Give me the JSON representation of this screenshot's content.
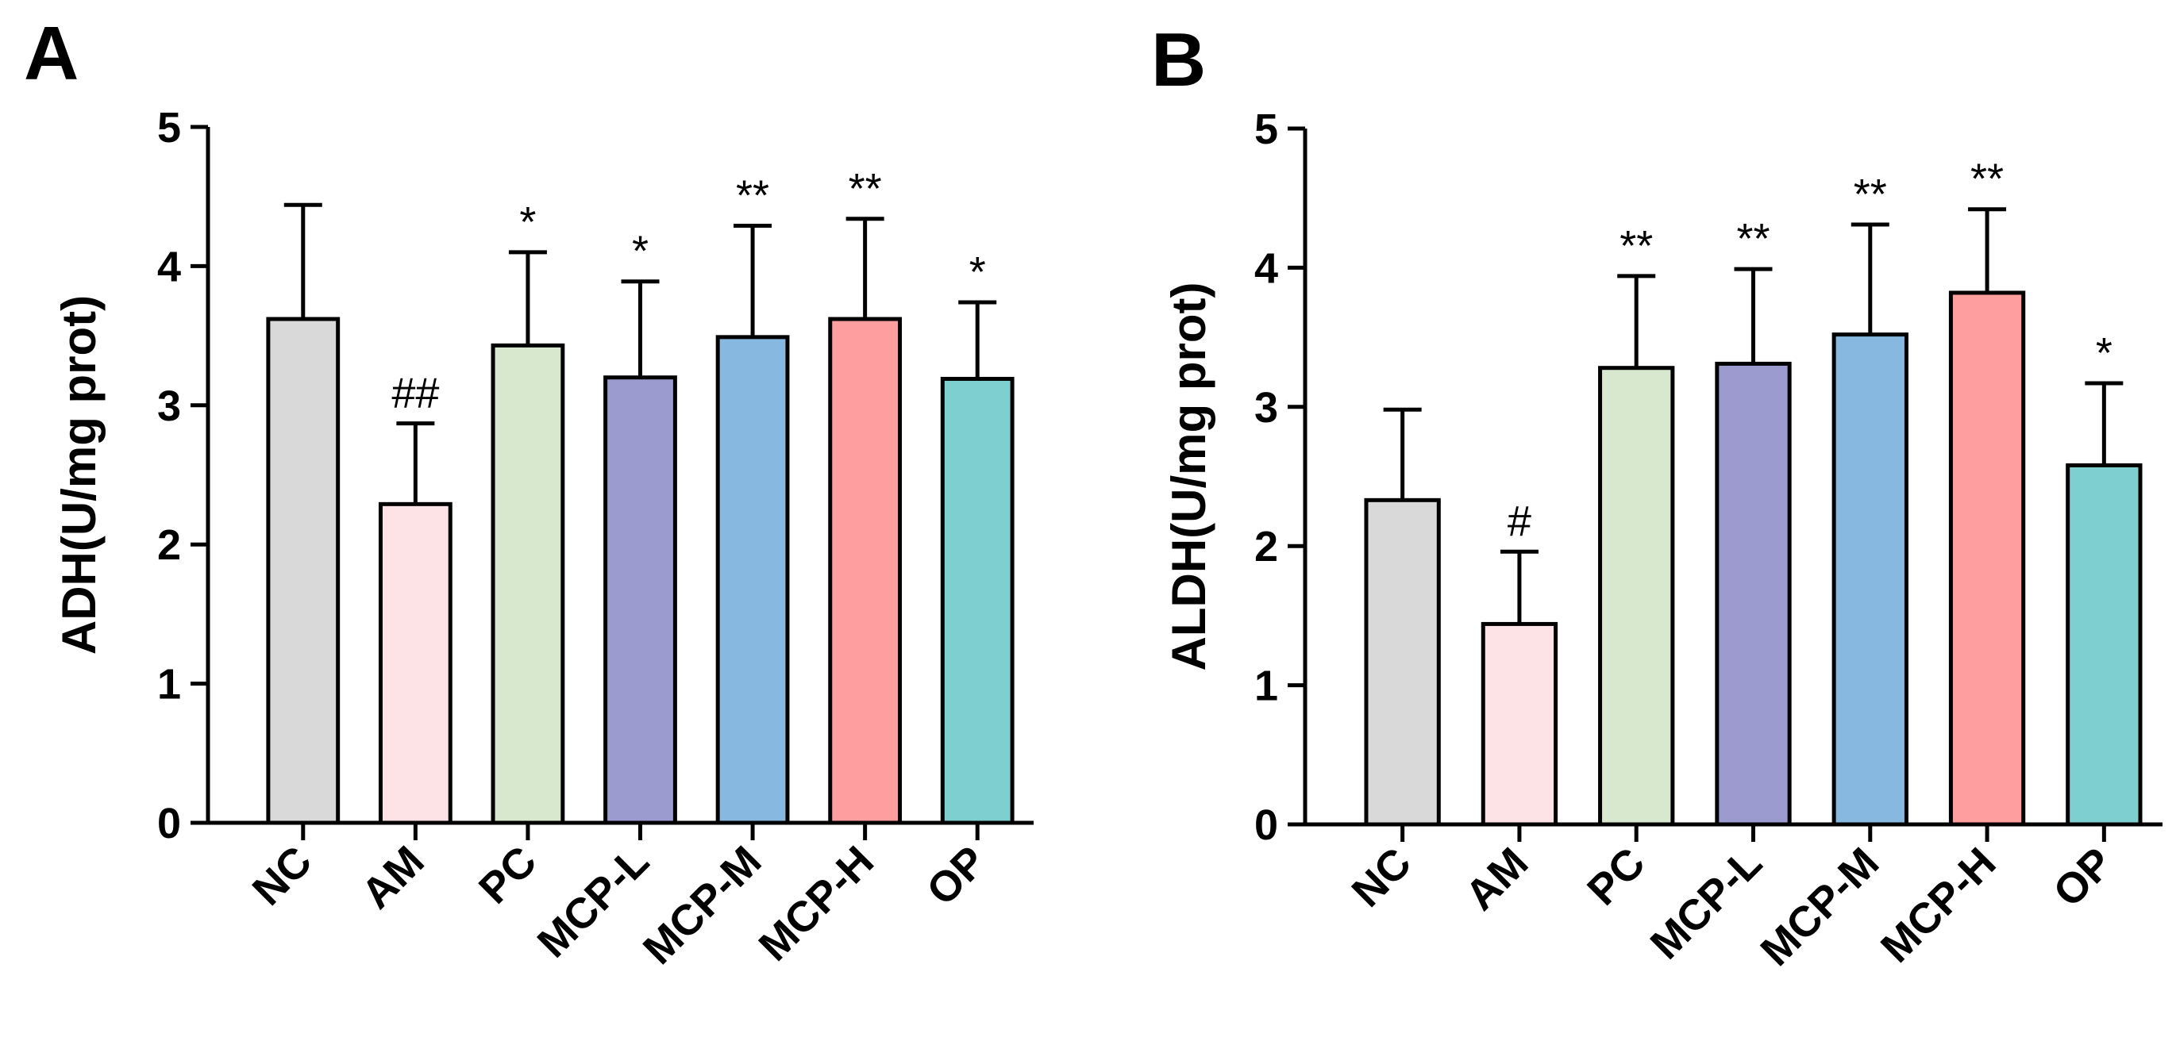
{
  "chart_data": [
    {
      "type": "bar",
      "panel": "A",
      "ylabel": "ADH(U/mg prot)",
      "ylim": [
        0,
        5
      ],
      "yticks": [
        "0",
        "1",
        "2",
        "3",
        "4",
        "5"
      ],
      "categories": [
        "NC",
        "AM",
        "PC",
        "MCP-L",
        "MCP-M",
        "MCP-H",
        "OP"
      ],
      "values": [
        3.62,
        2.29,
        3.43,
        3.2,
        3.49,
        3.62,
        3.19
      ],
      "errors": [
        0.82,
        0.58,
        0.67,
        0.69,
        0.8,
        0.72,
        0.55
      ],
      "annotations": [
        "",
        "##",
        "*",
        "*",
        "**",
        "**",
        "*"
      ],
      "colors": [
        "#d9d9d9",
        "#fde2e6",
        "#d7e8cf",
        "#9b9bd0",
        "#87b9e0",
        "#ff9e9e",
        "#7ecfcf"
      ]
    },
    {
      "type": "bar",
      "panel": "B",
      "ylabel": "ALDH(U/mg prot)",
      "ylim": [
        0,
        5
      ],
      "yticks": [
        "0",
        "1",
        "2",
        "3",
        "4",
        "5"
      ],
      "categories": [
        "NC",
        "AM",
        "PC",
        "MCP-L",
        "MCP-M",
        "MCP-H",
        "OP"
      ],
      "values": [
        2.33,
        1.44,
        3.28,
        3.31,
        3.52,
        3.82,
        2.58
      ],
      "errors": [
        0.65,
        0.52,
        0.66,
        0.68,
        0.79,
        0.6,
        0.59
      ],
      "annotations": [
        "",
        "#",
        "**",
        "**",
        "**",
        "**",
        "*"
      ],
      "colors": [
        "#d9d9d9",
        "#fde2e6",
        "#d7e8cf",
        "#9b9bd0",
        "#87b9e0",
        "#ff9e9e",
        "#7ecfcf"
      ]
    }
  ]
}
